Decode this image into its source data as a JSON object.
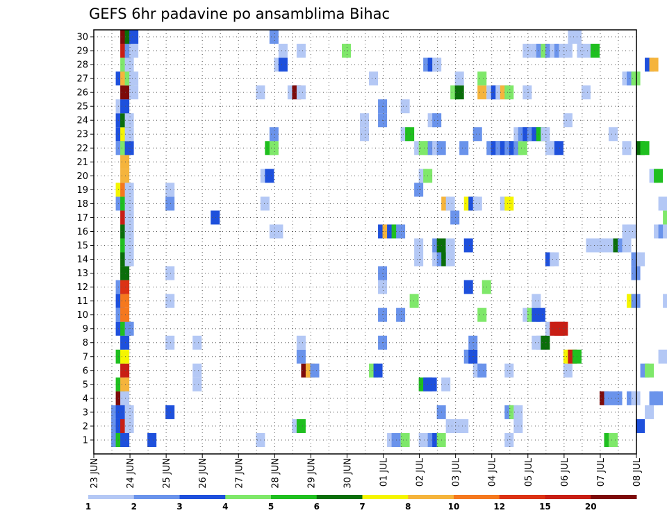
{
  "chart_data": {
    "type": "heatmap",
    "title": "GEFS 6hr padavine po ansamblima Bihac",
    "xlabel": "",
    "ylabel": "",
    "x_time_range": [
      "23 JUN 00Z",
      "08 JUL 00Z"
    ],
    "time_step_hours": 6,
    "x_tick_labels": [
      "23 JUN",
      "24 JUN",
      "25 JUN",
      "26 JUN",
      "27 JUN",
      "28 JUN",
      "29 JUN",
      "30 JUN",
      "01 JUL",
      "02 JUL",
      "03 JUL",
      "04 JUL",
      "05 JUL",
      "06 JUL",
      "07 JUL",
      "08 JUL"
    ],
    "y_tick_labels": [
      "1",
      "2",
      "3",
      "4",
      "5",
      "6",
      "7",
      "8",
      "9",
      "10",
      "11",
      "12",
      "13",
      "14",
      "15",
      "16",
      "17",
      "18",
      "19",
      "20",
      "21",
      "22",
      "23",
      "24",
      "25",
      "26",
      "27",
      "28",
      "29",
      "30"
    ],
    "grid": true,
    "colorbar": {
      "colors": [
        "#b4c8f5",
        "#6a93eb",
        "#1e50dc",
        "#7fe86a",
        "#1fbf1f",
        "#0a6e0a",
        "#f5f500",
        "#f5b43c",
        "#f5781e",
        "#dc3214",
        "#c81e14",
        "#7d0a0a"
      ],
      "labels": [
        "1",
        "2",
        "3",
        "4",
        "5",
        "6",
        "7",
        "8",
        "10",
        "12",
        "15",
        "20"
      ],
      "placement": "bottom"
    },
    "members": {
      "1": [
        [
          4,
          2
        ],
        [
          5,
          5
        ],
        [
          6,
          3
        ],
        [
          12,
          3
        ],
        [
          36,
          1
        ],
        [
          65,
          1
        ],
        [
          66,
          2
        ],
        [
          68,
          4
        ],
        [
          72,
          1
        ],
        [
          73,
          1
        ],
        [
          74,
          2
        ],
        [
          75,
          3
        ],
        [
          76,
          4
        ],
        [
          91,
          1
        ],
        [
          113,
          5
        ],
        [
          114,
          4
        ]
      ],
      "2": [
        [
          4,
          2
        ],
        [
          5,
          3
        ],
        [
          6,
          11
        ],
        [
          7,
          1
        ],
        [
          44,
          1
        ],
        [
          45,
          5
        ],
        [
          78,
          1
        ],
        [
          80,
          1
        ],
        [
          81,
          1
        ],
        [
          93,
          1
        ],
        [
          120,
          3
        ]
      ],
      "3": [
        [
          4,
          2
        ],
        [
          5,
          3
        ],
        [
          6,
          3
        ],
        [
          7,
          1
        ],
        [
          16,
          3
        ],
        [
          76,
          2
        ],
        [
          91,
          2
        ],
        [
          92,
          4
        ],
        [
          93,
          1
        ],
        [
          122,
          1
        ],
        [
          127,
          5
        ],
        [
          128,
          1
        ]
      ],
      "4": [
        [
          5,
          12
        ],
        [
          6,
          1
        ],
        [
          112,
          12
        ],
        [
          113,
          2
        ],
        [
          115,
          2
        ],
        [
          118,
          2
        ],
        [
          119,
          1
        ],
        [
          123,
          2
        ],
        [
          124,
          2
        ],
        [
          127,
          2
        ],
        [
          128,
          2
        ],
        [
          129,
          2
        ]
      ],
      "5": [
        [
          5,
          5
        ],
        [
          6,
          8
        ],
        [
          22,
          1
        ],
        [
          72,
          5
        ],
        [
          73,
          3
        ],
        [
          74,
          3
        ],
        [
          77,
          1
        ]
      ],
      "6": [
        [
          6,
          11
        ],
        [
          22,
          1
        ],
        [
          46,
          12
        ],
        [
          47,
          8
        ],
        [
          48,
          2
        ],
        [
          61,
          4
        ],
        [
          62,
          3
        ],
        [
          84,
          1
        ],
        [
          85,
          2
        ],
        [
          91,
          1
        ],
        [
          104,
          1
        ],
        [
          121,
          2
        ],
        [
          122,
          4
        ]
      ],
      "7": [
        [
          5,
          5
        ],
        [
          6,
          7
        ],
        [
          45,
          2
        ],
        [
          82,
          2
        ],
        [
          83,
          3
        ],
        [
          104,
          7
        ],
        [
          105,
          11
        ],
        [
          106,
          5
        ],
        [
          125,
          1
        ]
      ],
      "8": [
        [
          6,
          3
        ],
        [
          16,
          1
        ],
        [
          22,
          1
        ],
        [
          45,
          1
        ],
        [
          63,
          2
        ],
        [
          83,
          2
        ],
        [
          97,
          1
        ],
        [
          98,
          1
        ],
        [
          99,
          6
        ],
        [
          129,
          1
        ],
        [
          130,
          11
        ]
      ],
      "9": [
        [
          5,
          3
        ],
        [
          6,
          5
        ],
        [
          7,
          2
        ],
        [
          100,
          1
        ],
        [
          101,
          11
        ],
        [
          102,
          11
        ],
        [
          103,
          11
        ]
      ],
      "10": [
        [
          5,
          2
        ],
        [
          6,
          9
        ],
        [
          63,
          2
        ],
        [
          67,
          2
        ],
        [
          85,
          4
        ],
        [
          95,
          1
        ],
        [
          96,
          4
        ],
        [
          97,
          3
        ],
        [
          98,
          3
        ]
      ],
      "11": [
        [
          5,
          3
        ],
        [
          6,
          9
        ],
        [
          16,
          1
        ],
        [
          70,
          4
        ],
        [
          97,
          1
        ],
        [
          118,
          7
        ],
        [
          119,
          2
        ],
        [
          126,
          1
        ],
        [
          128,
          2
        ],
        [
          129,
          4
        ]
      ],
      "12": [
        [
          5,
          2
        ],
        [
          6,
          10
        ],
        [
          63,
          1
        ],
        [
          82,
          3
        ],
        [
          86,
          4
        ]
      ],
      "13": [
        [
          6,
          6
        ],
        [
          16,
          1
        ],
        [
          63,
          2
        ],
        [
          119,
          2
        ]
      ],
      "14": [
        [
          6,
          6
        ],
        [
          7,
          1
        ],
        [
          71,
          1
        ],
        [
          75,
          1
        ],
        [
          76,
          2
        ],
        [
          77,
          6
        ],
        [
          78,
          1
        ],
        [
          100,
          3
        ],
        [
          101,
          1
        ],
        [
          119,
          2
        ],
        [
          120,
          1
        ]
      ],
      "15": [
        [
          6,
          5
        ],
        [
          7,
          1
        ],
        [
          71,
          1
        ],
        [
          75,
          2
        ],
        [
          76,
          6
        ],
        [
          78,
          1
        ],
        [
          82,
          3
        ],
        [
          109,
          1
        ],
        [
          110,
          1
        ],
        [
          111,
          1
        ],
        [
          112,
          1
        ],
        [
          113,
          1
        ],
        [
          114,
          1
        ],
        [
          115,
          6
        ],
        [
          116,
          2
        ],
        [
          117,
          1
        ]
      ],
      "16": [
        [
          6,
          6
        ],
        [
          7,
          1
        ],
        [
          39,
          1
        ],
        [
          40,
          1
        ],
        [
          63,
          3
        ],
        [
          64,
          8
        ],
        [
          65,
          3
        ],
        [
          66,
          5
        ],
        [
          67,
          2
        ],
        [
          117,
          1
        ],
        [
          118,
          1
        ],
        [
          124,
          1
        ],
        [
          125,
          2
        ],
        [
          126,
          1
        ],
        [
          131,
          1
        ]
      ],
      "17": [
        [
          6,
          11
        ],
        [
          7,
          1
        ],
        [
          26,
          3
        ],
        [
          79,
          2
        ],
        [
          126,
          4
        ],
        [
          127,
          4
        ]
      ],
      "18": [
        [
          5,
          2
        ],
        [
          6,
          5
        ],
        [
          7,
          1
        ],
        [
          16,
          2
        ],
        [
          37,
          1
        ],
        [
          77,
          8
        ],
        [
          78,
          1
        ],
        [
          82,
          7
        ],
        [
          83,
          3
        ],
        [
          84,
          1
        ],
        [
          90,
          1
        ],
        [
          91,
          7
        ],
        [
          125,
          1
        ],
        [
          127,
          1
        ],
        [
          128,
          2
        ]
      ],
      "19": [
        [
          5,
          7
        ],
        [
          6,
          9
        ],
        [
          7,
          1
        ],
        [
          16,
          1
        ],
        [
          71,
          2
        ]
      ],
      "20": [
        [
          6,
          8
        ],
        [
          37,
          1
        ],
        [
          38,
          3
        ],
        [
          72,
          1
        ],
        [
          73,
          4
        ],
        [
          123,
          1
        ],
        [
          124,
          5
        ]
      ],
      "21": [
        [
          6,
          8
        ],
        [
          131,
          3
        ]
      ],
      "22": [
        [
          5,
          2
        ],
        [
          6,
          4
        ],
        [
          7,
          3
        ],
        [
          38,
          5
        ],
        [
          39,
          4
        ],
        [
          71,
          1
        ],
        [
          72,
          4
        ],
        [
          73,
          4
        ],
        [
          74,
          2
        ],
        [
          75,
          1
        ],
        [
          76,
          2
        ],
        [
          81,
          2
        ],
        [
          87,
          2
        ],
        [
          88,
          3
        ],
        [
          89,
          2
        ],
        [
          90,
          3
        ],
        [
          91,
          2
        ],
        [
          92,
          3
        ],
        [
          93,
          2
        ],
        [
          94,
          4
        ],
        [
          100,
          1
        ],
        [
          101,
          1
        ],
        [
          102,
          3
        ],
        [
          117,
          1
        ],
        [
          120,
          6
        ],
        [
          121,
          5
        ]
      ],
      "23": [
        [
          5,
          3
        ],
        [
          6,
          7
        ],
        [
          7,
          1
        ],
        [
          39,
          2
        ],
        [
          59,
          1
        ],
        [
          68,
          1
        ],
        [
          69,
          5
        ],
        [
          84,
          2
        ],
        [
          93,
          1
        ],
        [
          94,
          2
        ],
        [
          95,
          3
        ],
        [
          96,
          2
        ],
        [
          97,
          3
        ],
        [
          98,
          5
        ],
        [
          99,
          1
        ],
        [
          114,
          1
        ]
      ],
      "24": [
        [
          5,
          3
        ],
        [
          6,
          6
        ],
        [
          7,
          1
        ],
        [
          59,
          1
        ],
        [
          63,
          2
        ],
        [
          74,
          1
        ],
        [
          75,
          2
        ],
        [
          104,
          1
        ]
      ],
      "25": [
        [
          5,
          1
        ],
        [
          6,
          3
        ],
        [
          63,
          2
        ],
        [
          68,
          1
        ]
      ],
      "26": [
        [
          6,
          12
        ],
        [
          8,
          1
        ],
        [
          36,
          1
        ],
        [
          43,
          1
        ],
        [
          44,
          12
        ],
        [
          45,
          1
        ],
        [
          79,
          4
        ],
        [
          80,
          6
        ],
        [
          85,
          8
        ],
        [
          87,
          1
        ],
        [
          88,
          3
        ],
        [
          89,
          1
        ],
        [
          90,
          8
        ],
        [
          91,
          4
        ],
        [
          95,
          1
        ],
        [
          108,
          1
        ]
      ],
      "27": [
        [
          5,
          3
        ],
        [
          6,
          8
        ],
        [
          7,
          4
        ],
        [
          8,
          1
        ],
        [
          61,
          1
        ],
        [
          80,
          1
        ],
        [
          85,
          4
        ],
        [
          117,
          1
        ],
        [
          118,
          2
        ],
        [
          119,
          4
        ]
      ],
      "28": [
        [
          6,
          4
        ],
        [
          7,
          1
        ],
        [
          40,
          1
        ],
        [
          41,
          3
        ],
        [
          73,
          2
        ],
        [
          74,
          3
        ],
        [
          75,
          1
        ],
        [
          122,
          3
        ],
        [
          123,
          8
        ]
      ],
      "29": [
        [
          6,
          11
        ],
        [
          7,
          2
        ],
        [
          8,
          1
        ],
        [
          41,
          1
        ],
        [
          45,
          1
        ],
        [
          55,
          4
        ],
        [
          95,
          1
        ],
        [
          97,
          1
        ],
        [
          98,
          2
        ],
        [
          99,
          4
        ],
        [
          100,
          2
        ],
        [
          101,
          1
        ],
        [
          102,
          2
        ],
        [
          103,
          1
        ],
        [
          104,
          1
        ],
        [
          107,
          1
        ],
        [
          108,
          1
        ],
        [
          110,
          5
        ]
      ],
      "30": [
        [
          6,
          12
        ],
        [
          7,
          6
        ],
        [
          8,
          3
        ],
        [
          39,
          2
        ],
        [
          105,
          1
        ],
        [
          106,
          1
        ]
      ]
    }
  }
}
